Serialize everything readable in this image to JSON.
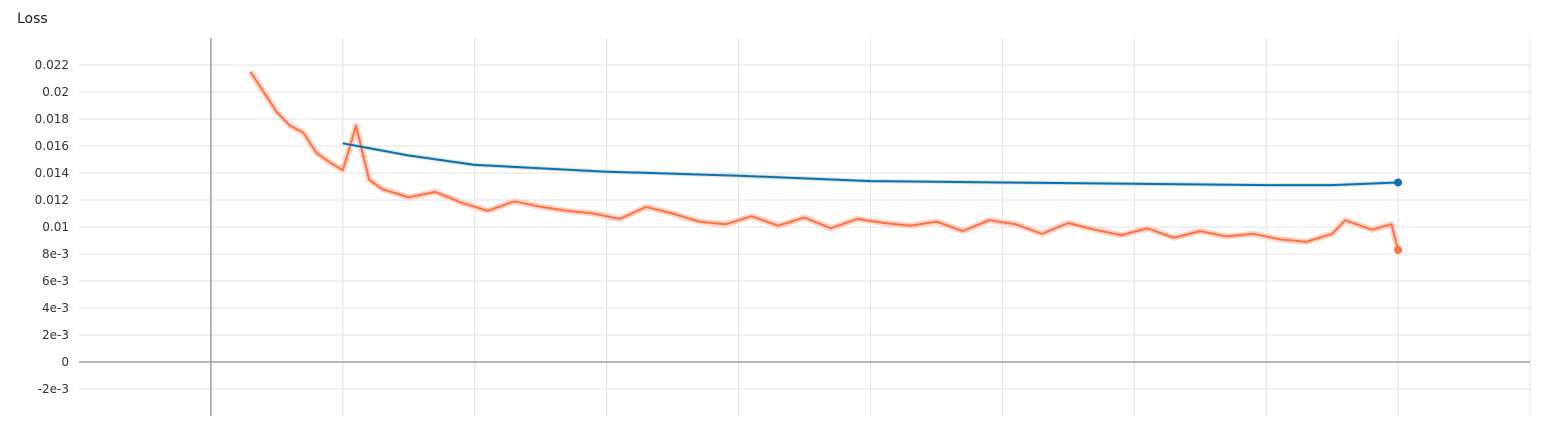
{
  "chart_data": {
    "type": "line",
    "title": "Loss",
    "xlabel": "",
    "ylabel": "",
    "ylim": [
      -0.004,
      0.024
    ],
    "xlim": [
      -1,
      10
    ],
    "yticks": [
      {
        "value": 0.022,
        "label": "0.022"
      },
      {
        "value": 0.02,
        "label": "0.02"
      },
      {
        "value": 0.018,
        "label": "0.018"
      },
      {
        "value": 0.016,
        "label": "0.016"
      },
      {
        "value": 0.014,
        "label": "0.014"
      },
      {
        "value": 0.012,
        "label": "0.012"
      },
      {
        "value": 0.01,
        "label": "0.01"
      },
      {
        "value": 0.008,
        "label": "8e-3"
      },
      {
        "value": 0.006,
        "label": "6e-3"
      },
      {
        "value": 0.004,
        "label": "4e-3"
      },
      {
        "value": 0.002,
        "label": "2e-3"
      },
      {
        "value": 0,
        "label": "0"
      },
      {
        "value": -0.002,
        "label": "-2e-3"
      }
    ],
    "xgrid": [
      0,
      1,
      2,
      3,
      4,
      5,
      6,
      7,
      8,
      9,
      10
    ],
    "grid": true,
    "colors": {
      "train_smoothed": "#ff7043",
      "train_raw": "#ffd2c4",
      "eval_smoothed": "#0b6fb0",
      "eval_raw": "#cfe3df",
      "grid": "#e0e0e0",
      "axis": "#9e9e9e"
    },
    "series": [
      {
        "key": "train",
        "x": [
          0.3,
          0.4,
          0.5,
          0.6,
          0.7,
          0.8,
          0.9,
          1.0,
          1.1,
          1.2,
          1.3,
          1.5,
          1.7,
          1.9,
          2.1,
          2.3,
          2.5,
          2.7,
          2.9,
          3.1,
          3.3,
          3.5,
          3.7,
          3.9,
          4.1,
          4.3,
          4.5,
          4.7,
          4.9,
          5.1,
          5.3,
          5.5,
          5.7,
          5.9,
          6.1,
          6.3,
          6.5,
          6.7,
          6.9,
          7.1,
          7.3,
          7.5,
          7.7,
          7.9,
          8.1,
          8.3,
          8.5,
          8.6,
          8.8,
          8.95,
          9.0
        ],
        "y": [
          0.0215,
          0.02,
          0.0185,
          0.0175,
          0.017,
          0.0155,
          0.0148,
          0.0142,
          0.0175,
          0.0135,
          0.0128,
          0.0122,
          0.0126,
          0.0118,
          0.0112,
          0.0119,
          0.0115,
          0.0112,
          0.011,
          0.0106,
          0.0115,
          0.011,
          0.0104,
          0.0102,
          0.0108,
          0.0101,
          0.0107,
          0.0099,
          0.0106,
          0.0103,
          0.0101,
          0.0104,
          0.0097,
          0.0105,
          0.0102,
          0.0095,
          0.0103,
          0.0098,
          0.0094,
          0.0099,
          0.0092,
          0.0097,
          0.0093,
          0.0095,
          0.0091,
          0.0089,
          0.0095,
          0.0105,
          0.0098,
          0.0102,
          0.0083
        ]
      },
      {
        "key": "eval",
        "x": [
          1.0,
          1.5,
          2.0,
          3.0,
          4.0,
          5.0,
          6.0,
          7.0,
          8.0,
          8.5,
          9.0
        ],
        "y": [
          0.0162,
          0.0153,
          0.0146,
          0.0141,
          0.0138,
          0.0134,
          0.0133,
          0.0132,
          0.0131,
          0.0131,
          0.0133
        ]
      }
    ]
  }
}
